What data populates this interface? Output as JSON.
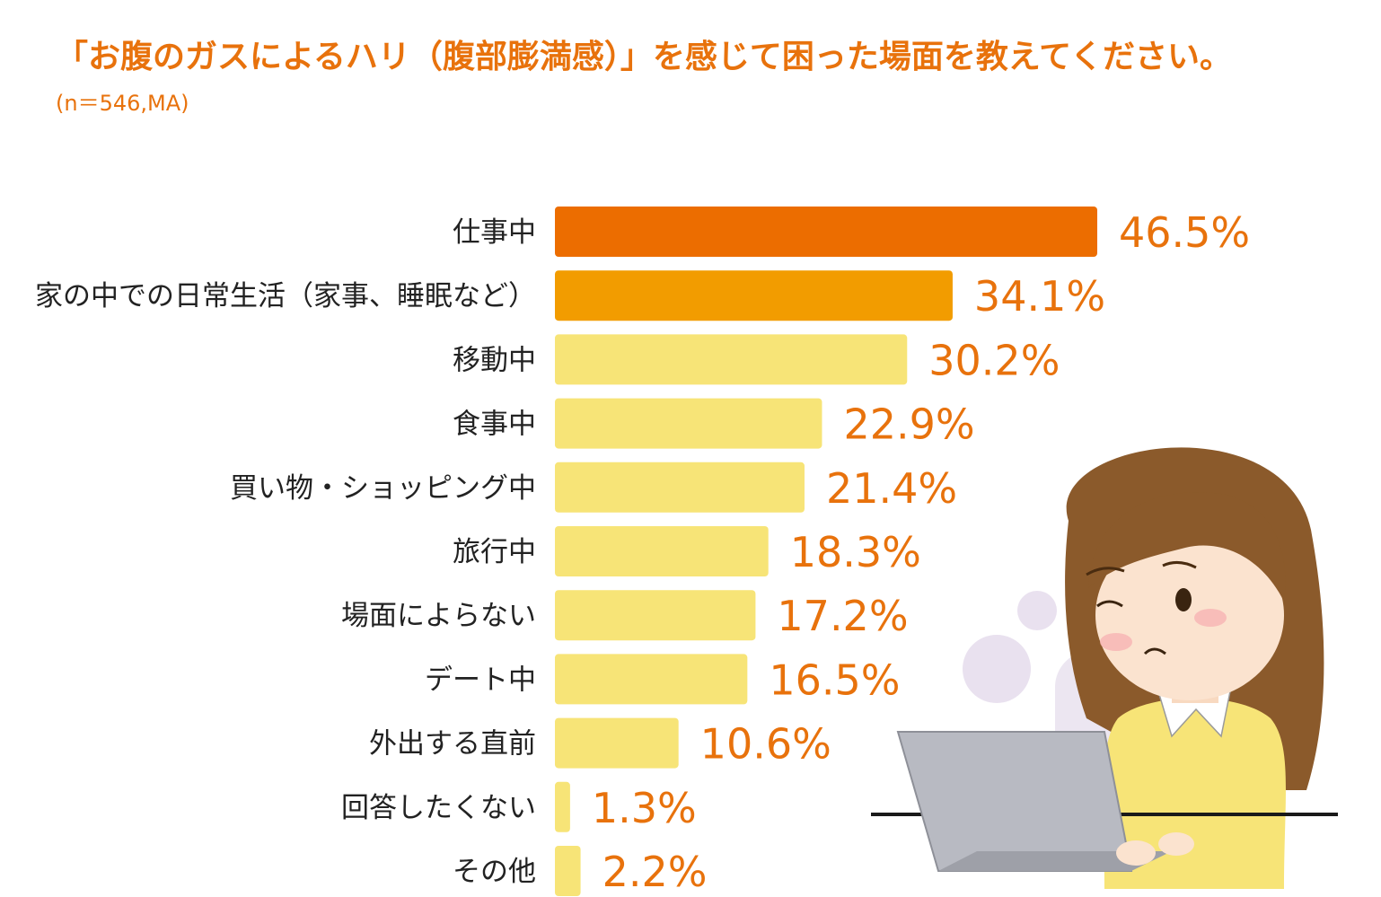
{
  "title": "「お腹のガスによるハリ（腹部膨満感）」を感じて困った場面を教えてください。",
  "subtitle": "(n＝546,MA)",
  "colors": {
    "accent_text": "#e8720c",
    "bar_top1": "#ec6d00",
    "bar_top2": "#f29c00",
    "bar_other": "#f7e477"
  },
  "chart_data": {
    "type": "bar",
    "orientation": "horizontal",
    "title": "「お腹のガスによるハリ（腹部膨満感）」を感じて困った場面を教えてください。",
    "subtitle": "(n＝546,MA)",
    "unit": "%",
    "xlim": [
      0,
      46.5
    ],
    "grid": false,
    "legend": "none",
    "categories": [
      "仕事中",
      "家の中での日常生活（家事、睡眠など）",
      "移動中",
      "食事中",
      "買い物・ショッピング中",
      "旅行中",
      "場面によらない",
      "デート中",
      "外出する直前",
      "回答したくない",
      "その他"
    ],
    "values": [
      46.5,
      34.1,
      30.2,
      22.9,
      21.4,
      18.3,
      17.2,
      16.5,
      10.6,
      1.3,
      2.2
    ],
    "value_labels": [
      "46.5%",
      "34.1%",
      "30.2%",
      "22.9%",
      "21.4%",
      "18.3%",
      "17.2%",
      "16.5%",
      "10.6%",
      "1.3%",
      "2.2%"
    ]
  }
}
